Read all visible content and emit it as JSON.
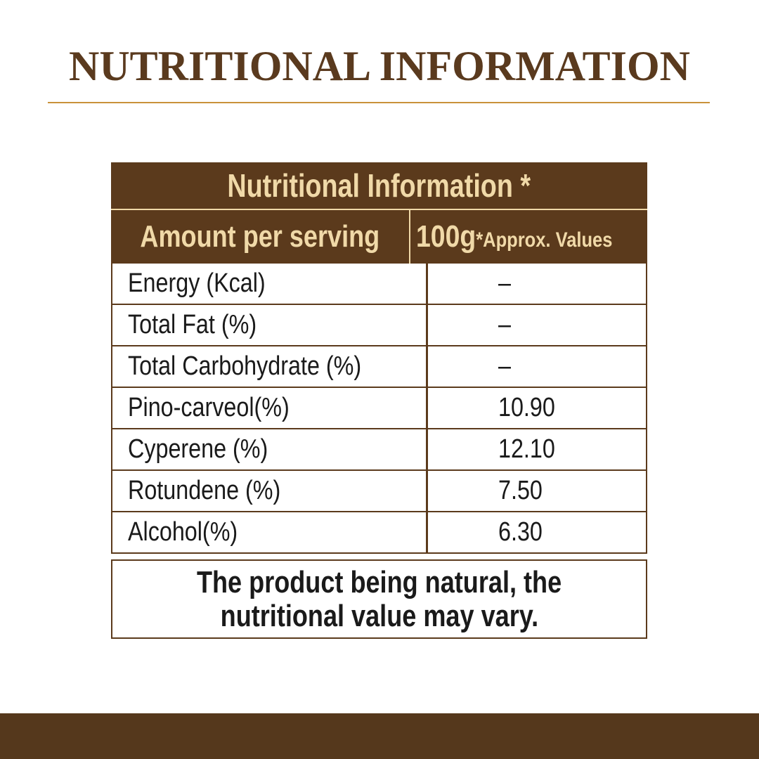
{
  "header": {
    "title": "NUTRITIONAL INFORMATION"
  },
  "table": {
    "title": "Nutritional Information *",
    "columns": [
      "Amount per serving",
      "100g",
      "*Approx. Values"
    ],
    "rows": [
      [
        "Energy (Kcal)",
        "–"
      ],
      [
        "Total Fat (%)",
        "–"
      ],
      [
        "Total Carbohydrate (%)",
        "–"
      ],
      [
        "Pino-carveol(%)",
        "10.90"
      ],
      [
        "Cyperene (%)",
        "12.10"
      ],
      [
        "Rotundene (%)",
        "7.50"
      ],
      [
        "Alcohol(%)",
        "6.30"
      ]
    ]
  },
  "note": {
    "lines": [
      "The product being natural, the",
      "nutritional value may vary."
    ]
  }
}
